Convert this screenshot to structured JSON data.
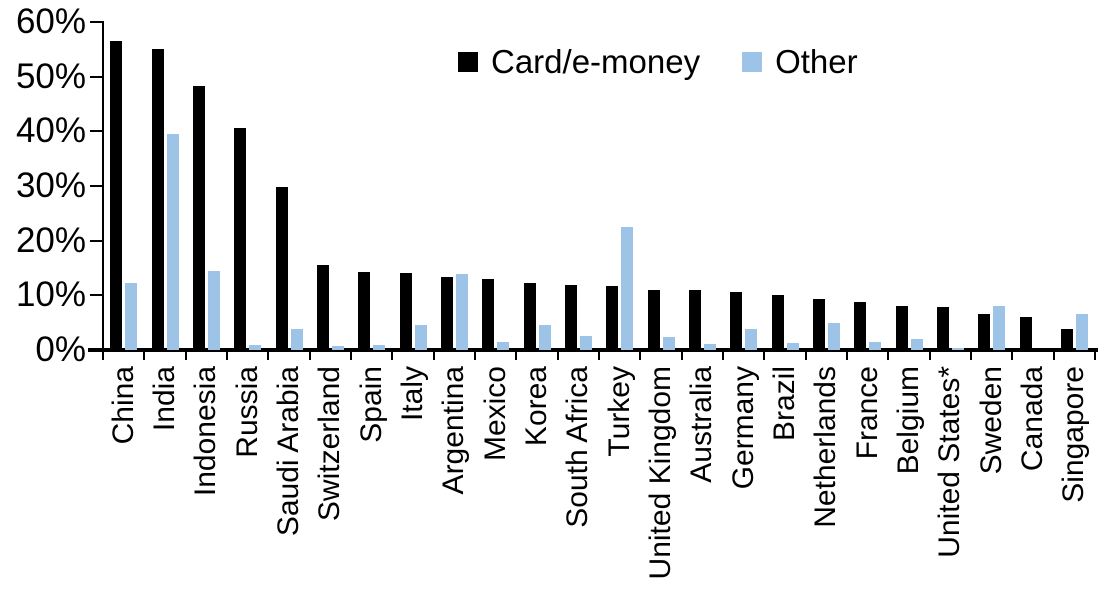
{
  "chart_data": {
    "type": "bar",
    "title": "",
    "xlabel": "",
    "ylabel": "",
    "ylim": [
      0,
      60
    ],
    "ytick_step": 10,
    "ytick_labels": [
      "0%",
      "10%",
      "20%",
      "30%",
      "40%",
      "50%",
      "60%"
    ],
    "grid": false,
    "legend_position": "top-center",
    "categories": [
      "China",
      "India",
      "Indonesia",
      "Russia",
      "Saudi Arabia",
      "Switzerland",
      "Spain",
      "Italy",
      "Argentina",
      "Mexico",
      "Korea",
      "South Africa",
      "Turkey",
      "United Kingdom",
      "Australia",
      "Germany",
      "Brazil",
      "Netherlands",
      "France",
      "Belgium",
      "United States*",
      "Sweden",
      "Canada",
      "Singapore"
    ],
    "series": [
      {
        "name": "Card/e-money",
        "color": "#000000",
        "values": [
          56.5,
          55.0,
          48.3,
          40.6,
          29.8,
          15.6,
          14.2,
          14.1,
          13.4,
          12.9,
          12.3,
          11.8,
          11.7,
          11.0,
          10.9,
          10.6,
          10.0,
          9.3,
          8.7,
          8.1,
          7.8,
          6.5,
          6.0,
          3.9
        ]
      },
      {
        "name": "Other",
        "color": "#9DC3E6",
        "values": [
          12.3,
          39.6,
          14.5,
          1.0,
          3.8,
          0.8,
          1.0,
          4.6,
          13.9,
          1.4,
          4.6,
          2.5,
          22.5,
          2.3,
          1.1,
          3.9,
          1.2,
          4.9,
          1.5,
          2.1,
          0.4,
          8.0,
          0.0,
          6.6
        ]
      }
    ]
  }
}
